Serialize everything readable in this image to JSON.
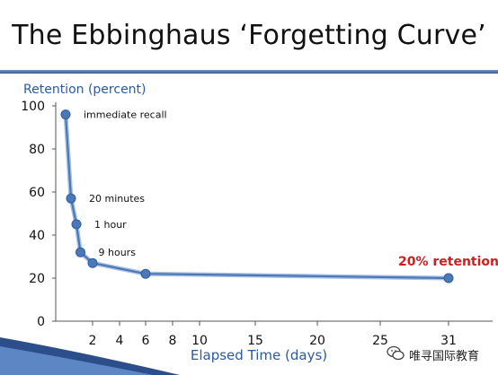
{
  "slide": {
    "title": "The Ebbinghaus ‘Forgetting Curve’"
  },
  "chart_data": {
    "type": "line",
    "title": "",
    "xlabel": "Elapsed Time (days)",
    "ylabel": "Retention (percent)",
    "xlim": [
      -2,
      32
    ],
    "ylim": [
      0,
      100
    ],
    "x_ticks": [
      2,
      4,
      6,
      8,
      10,
      15,
      20,
      25,
      31
    ],
    "y_ticks": [
      0,
      20,
      40,
      60,
      80,
      100
    ],
    "grid": false,
    "series": [
      {
        "name": "",
        "color": "#4a78b8",
        "points": [
          {
            "x": 0,
            "y": 96,
            "label": "immediate recall"
          },
          {
            "x": 0.4,
            "y": 57,
            "label": "20 minutes"
          },
          {
            "x": 0.8,
            "y": 45,
            "label": "1 hour"
          },
          {
            "x": 1.1,
            "y": 32,
            "label": "9 hours"
          },
          {
            "x": 2,
            "y": 27,
            "label": ""
          },
          {
            "x": 6,
            "y": 22,
            "label": ""
          },
          {
            "x": 31,
            "y": 20,
            "label": ""
          }
        ]
      }
    ],
    "annotation": {
      "text": "20% retention",
      "color": "#cc1f1f"
    }
  },
  "watermark": {
    "text": "唯寻国际教育",
    "icon": "wechat-icon"
  }
}
